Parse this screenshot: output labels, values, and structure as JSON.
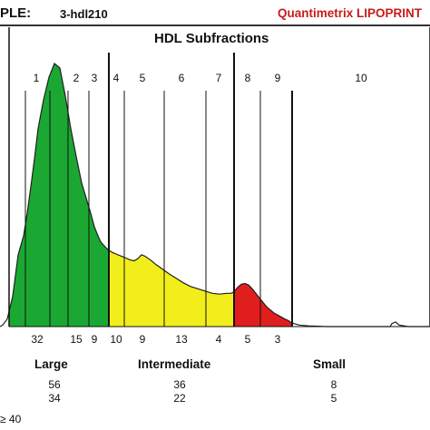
{
  "header": {
    "label": "PLE:",
    "sample": "3-hdl210",
    "brand": "Quantimetrix LIPOPRINT"
  },
  "chart_data": {
    "type": "area",
    "title": "HDL Subfractions",
    "band_labels": [
      "1",
      "2",
      "3",
      "4",
      "5",
      "6",
      "7",
      "8",
      "9",
      "10"
    ],
    "band_values": [
      "32",
      "15",
      "9",
      "10",
      "9",
      "13",
      "4",
      "5",
      "3"
    ],
    "regions": [
      {
        "name": "Large",
        "color": "#1aa832"
      },
      {
        "name": "Intermediate",
        "color": "#f2ee1b"
      },
      {
        "name": "Small",
        "color": "#e01e1e"
      }
    ],
    "curve": {
      "x": [
        0,
        3,
        8,
        14,
        20,
        26,
        30,
        34,
        38,
        42,
        48,
        54,
        60,
        66,
        72,
        78,
        84,
        90,
        96,
        100,
        104,
        108,
        111,
        114,
        117,
        120,
        124,
        128,
        132,
        136,
        140,
        144,
        148,
        152,
        156,
        160,
        166,
        172,
        178,
        186,
        194,
        202,
        210,
        218,
        226,
        234,
        242,
        250,
        255,
        258,
        262,
        266,
        270,
        274,
        278,
        282,
        286,
        290,
        294,
        298,
        302,
        308,
        314,
        318,
        320,
        324,
        330,
        340,
        360,
        380,
        400,
        420,
        430,
        432,
        436,
        440,
        450,
        474
      ],
      "y": [
        0,
        2,
        10,
        40,
        95,
        120,
        150,
        185,
        222,
        262,
        300,
        330,
        348,
        342,
        305,
        262,
        225,
        190,
        166,
        150,
        132,
        120,
        112,
        108,
        104,
        101,
        98,
        96,
        94,
        92,
        90,
        88,
        87,
        90,
        95,
        93,
        88,
        82,
        77,
        70,
        64,
        58,
        53,
        50,
        47,
        44,
        43,
        44,
        44,
        46,
        52,
        56,
        57,
        55,
        50,
        44,
        38,
        32,
        26,
        22,
        18,
        14,
        10,
        8,
        6,
        4,
        2,
        1,
        0,
        0,
        0,
        0,
        0,
        4,
        6,
        2,
        0,
        0
      ],
      "ylim": [
        0,
        360
      ]
    },
    "divisions": {
      "region_edges": [
        120,
        258,
        322
      ],
      "minor": [
        28,
        55,
        75,
        98,
        137,
        181,
        227,
        287
      ],
      "frame": [
        10,
        474
      ]
    },
    "summary": {
      "row1": [
        "56",
        "36",
        "8"
      ],
      "row2": [
        "34",
        "22",
        "5"
      ]
    },
    "note": "≥ 40"
  }
}
